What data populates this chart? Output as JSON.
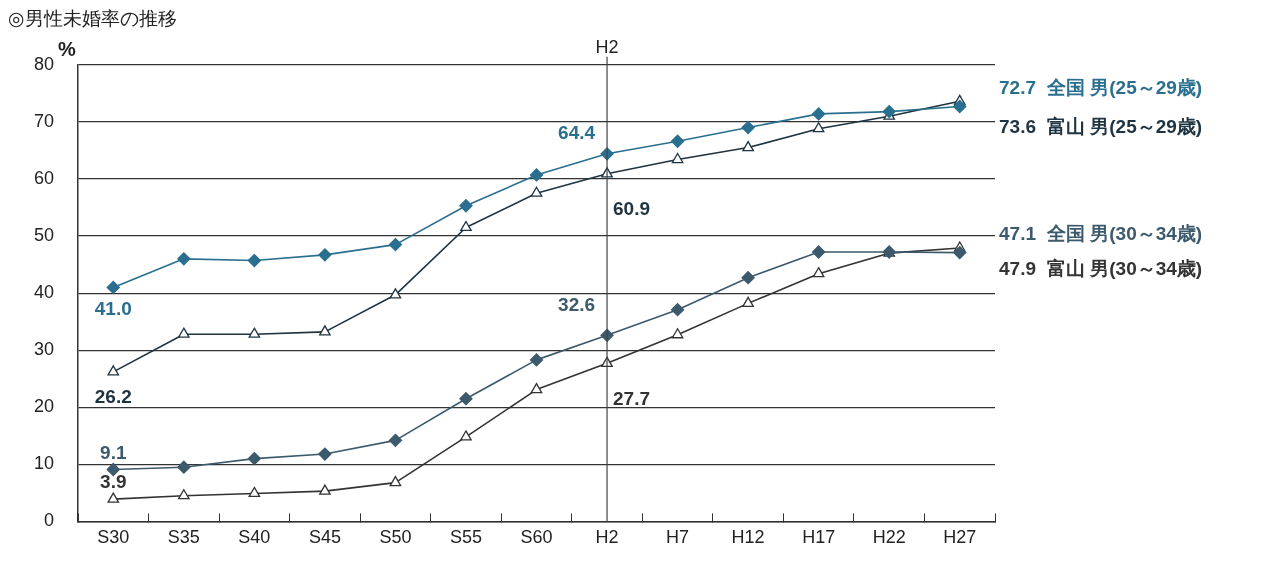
{
  "chart_data": {
    "type": "line",
    "title": "◎男性未婚率の推移",
    "ylabel": "%",
    "categories": [
      "S30",
      "S35",
      "S40",
      "S45",
      "S50",
      "S55",
      "S60",
      "H2",
      "H7",
      "H12",
      "H17",
      "H22",
      "H27"
    ],
    "series": [
      {
        "name": "全国 男(25～29歳)",
        "color": "#2a6f8f",
        "marker": "diamond",
        "values": [
          41.0,
          46.0,
          45.7,
          46.7,
          48.5,
          55.3,
          60.7,
          64.4,
          66.6,
          69.0,
          71.4,
          71.8,
          72.7
        ],
        "value_labels": [
          "41.0",
          null,
          null,
          null,
          null,
          null,
          null,
          "64.4",
          null,
          null,
          null,
          null,
          "72.7"
        ]
      },
      {
        "name": "富山 男(25～29歳)",
        "color": "#1f3340",
        "marker": "triangle",
        "values": [
          26.2,
          32.8,
          32.8,
          33.2,
          39.7,
          51.5,
          57.5,
          60.9,
          63.4,
          65.5,
          68.8,
          71.0,
          73.6
        ],
        "value_labels": [
          "26.2",
          null,
          null,
          null,
          null,
          null,
          null,
          "60.9",
          null,
          null,
          null,
          null,
          "73.6"
        ]
      },
      {
        "name": "全国 男(30～34歳)",
        "color": "#3d5a6c",
        "marker": "diamond",
        "values": [
          9.1,
          9.5,
          11.0,
          11.8,
          14.2,
          21.5,
          28.3,
          32.6,
          37.1,
          42.7,
          47.2,
          47.2,
          47.1
        ],
        "value_labels": [
          "9.1",
          null,
          null,
          null,
          null,
          null,
          null,
          "32.6",
          null,
          null,
          null,
          null,
          "47.1"
        ]
      },
      {
        "name": "富山 男(30～34歳)",
        "color": "#333333",
        "marker": "triangle",
        "values": [
          3.9,
          4.5,
          4.9,
          5.3,
          6.8,
          14.8,
          23.1,
          27.7,
          32.7,
          38.2,
          43.4,
          47.0,
          47.9
        ],
        "value_labels": [
          "3.9",
          null,
          null,
          null,
          null,
          null,
          null,
          "27.7",
          null,
          null,
          null,
          null,
          "47.9"
        ]
      }
    ],
    "ylim": [
      0,
      80
    ],
    "yticks": [
      0,
      10,
      20,
      30,
      40,
      50,
      60,
      70,
      80
    ],
    "grid": "y",
    "legend": false,
    "ref_lines": [
      {
        "axis": "x",
        "value": "H2",
        "label": "H2"
      }
    ]
  }
}
